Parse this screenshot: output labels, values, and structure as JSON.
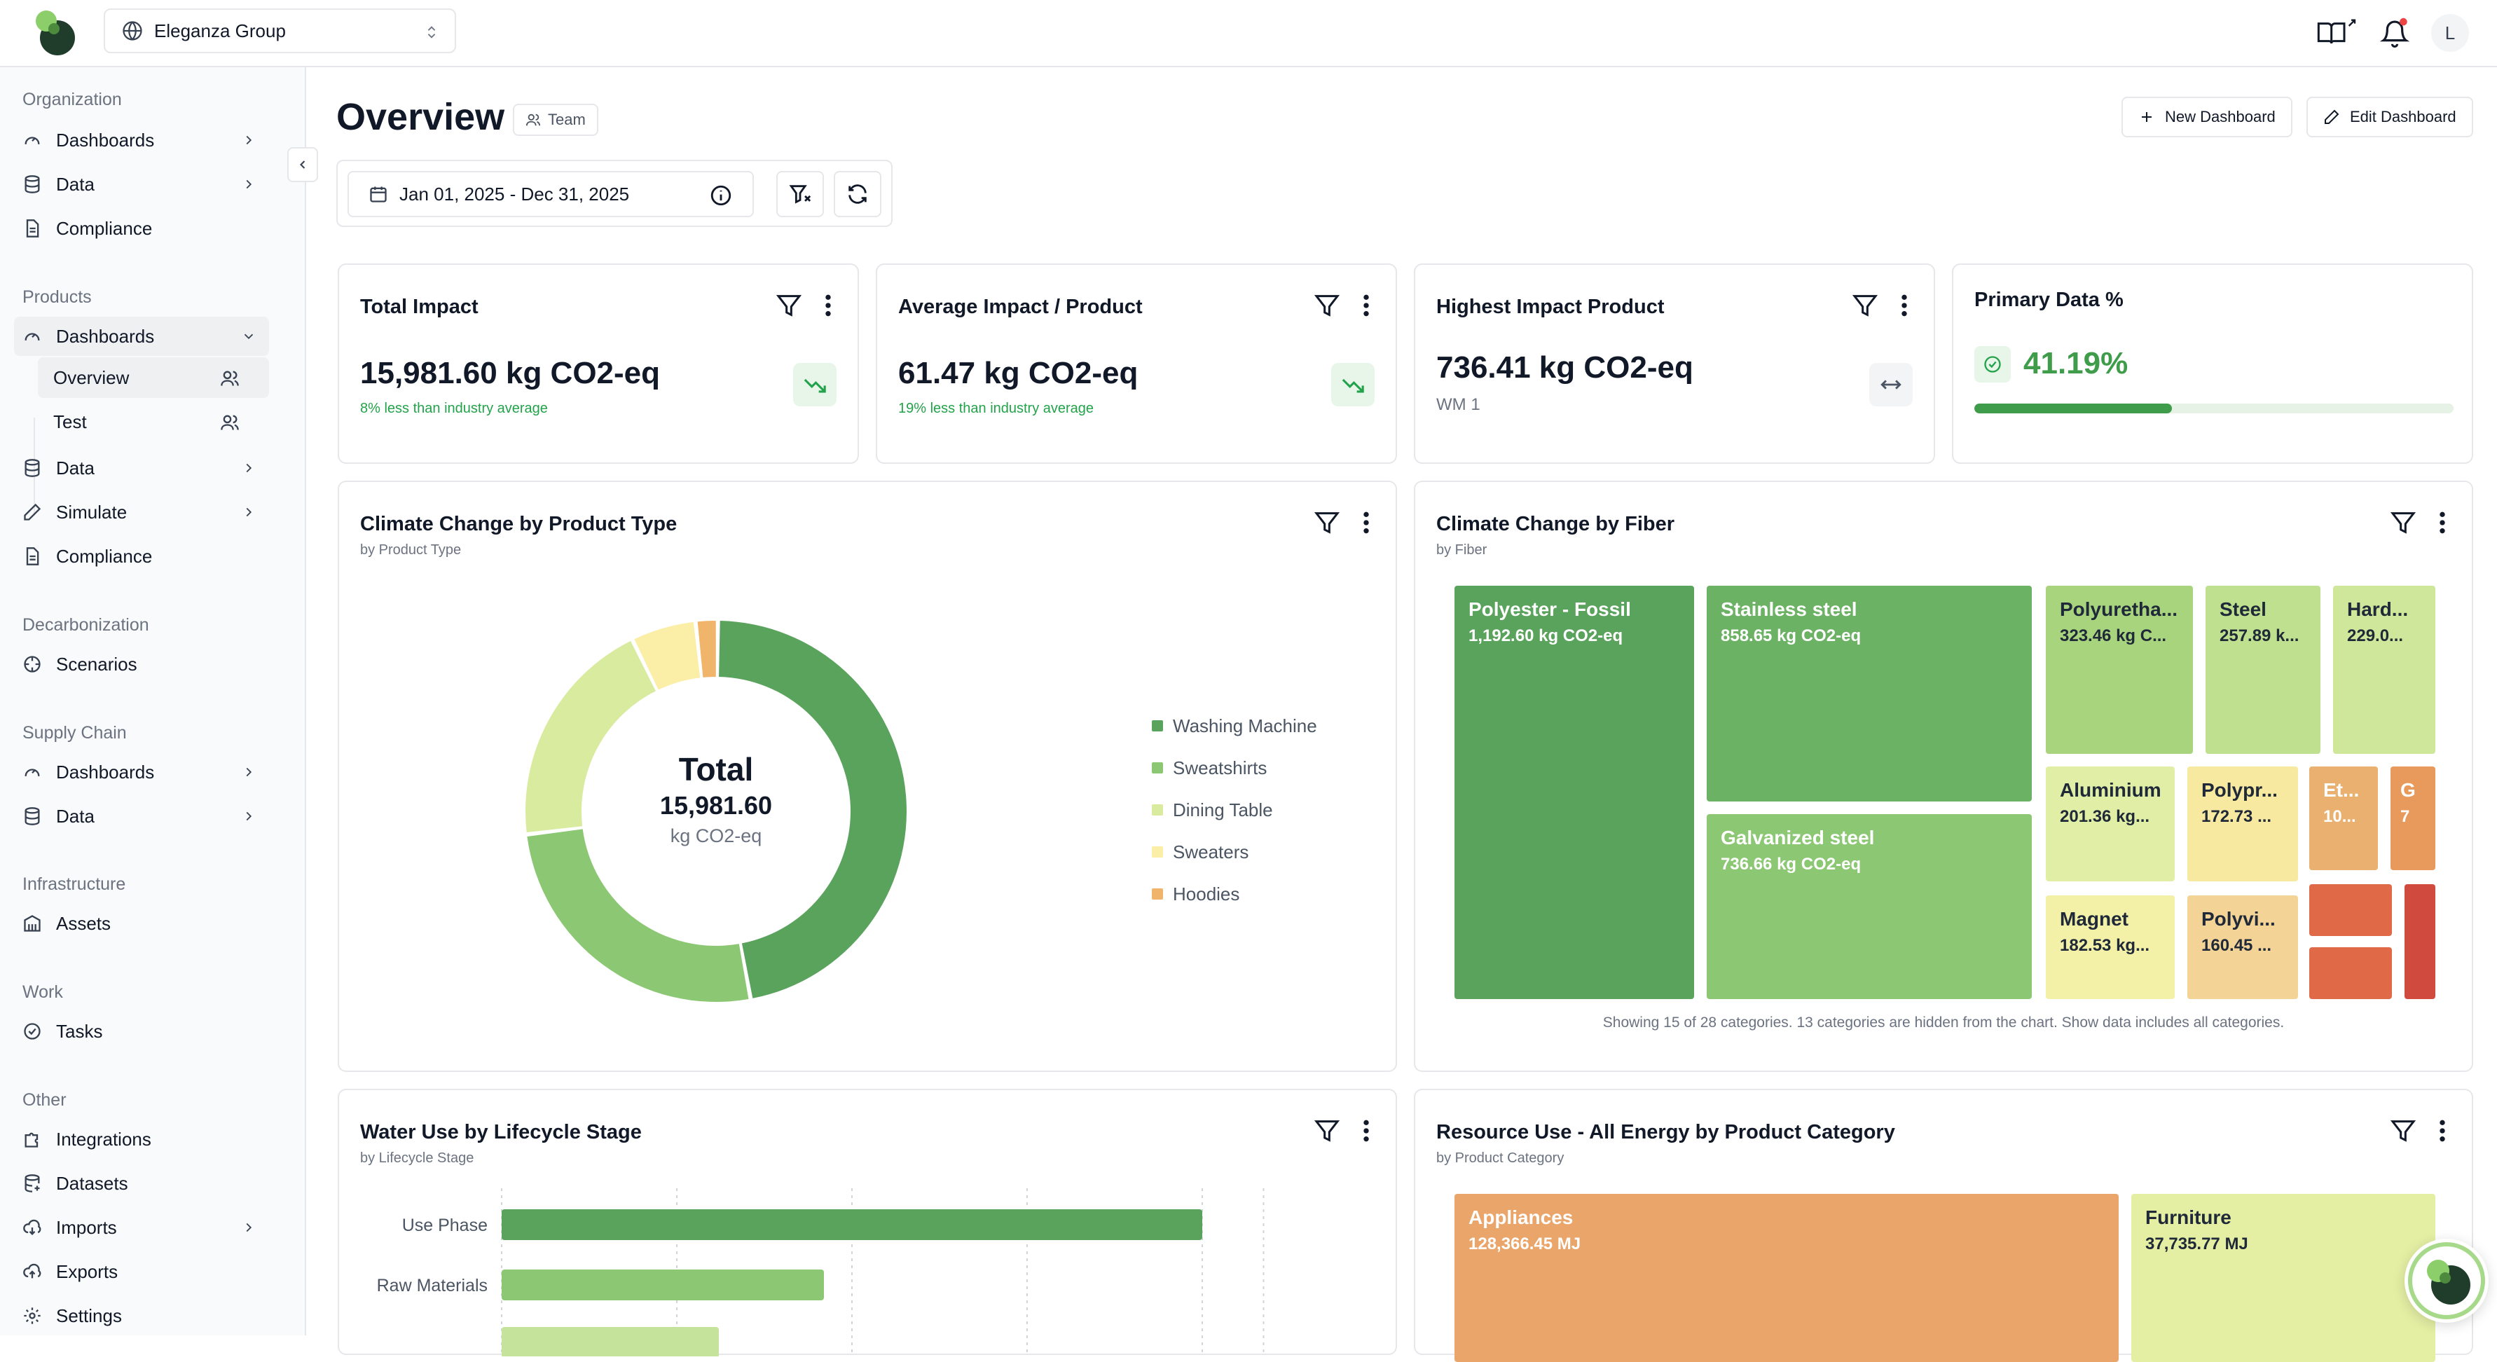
{
  "topbar": {
    "org_name": "Eleganza Group",
    "avatar_initial": "L"
  },
  "sidebar": {
    "sections": [
      {
        "title": "Organization"
      },
      {
        "title": "Products"
      },
      {
        "title": "Decarbonization"
      },
      {
        "title": "Supply Chain"
      },
      {
        "title": "Infrastructure"
      },
      {
        "title": "Work"
      },
      {
        "title": "Other"
      }
    ],
    "org_items": [
      "Dashboards",
      "Data",
      "Compliance"
    ],
    "products_items": [
      "Dashboards",
      "Overview",
      "Test",
      "Data",
      "Simulate",
      "Compliance"
    ],
    "decarb_items": [
      "Scenarios"
    ],
    "supply_items": [
      "Dashboards",
      "Data"
    ],
    "infra_items": [
      "Assets"
    ],
    "work_items": [
      "Tasks"
    ],
    "other_items": [
      "Integrations",
      "Datasets",
      "Imports",
      "Exports",
      "Settings"
    ]
  },
  "header": {
    "title": "Overview",
    "badge": "Team",
    "new_dashboard": "New Dashboard",
    "edit_dashboard": "Edit Dashboard",
    "date_range": "Jan 01, 2025 - Dec 31, 2025"
  },
  "kpis": [
    {
      "title": "Total Impact",
      "value": "15,981.60 kg CO2-eq",
      "note": "8% less than industry average"
    },
    {
      "title": "Average Impact / Product",
      "value": "61.47 kg CO2-eq",
      "note": "19% less than industry average"
    },
    {
      "title": "Highest Impact Product",
      "value": "736.41 kg CO2-eq",
      "note": "WM 1"
    },
    {
      "title": "Primary Data %",
      "value": "41.19%",
      "progress": 0.4119
    }
  ],
  "donut_card": {
    "title": "Climate Change by Product Type",
    "subtitle": "by Product Type",
    "center_label": "Total",
    "center_value": "15,981.60",
    "center_unit": "kg CO2-eq"
  },
  "fiber_card": {
    "title": "Climate Change by Fiber",
    "subtitle": "by Fiber",
    "note": "Showing 15 of 28 categories. 13 categories are hidden from the chart. Show data includes all categories.",
    "tiles": [
      {
        "name": "Polyester - Fossil",
        "value": "1,192.60 kg CO2-eq"
      },
      {
        "name": "Stainless steel",
        "value": "858.65 kg CO2-eq"
      },
      {
        "name": "Galvanized steel",
        "value": "736.66 kg CO2-eq"
      },
      {
        "name": "Polyuretha...",
        "value": "323.46 kg C..."
      },
      {
        "name": "Steel",
        "value": "257.89 k..."
      },
      {
        "name": "Hard...",
        "value": "229.0..."
      },
      {
        "name": "Aluminium",
        "value": "201.36 kg..."
      },
      {
        "name": "Polypr...",
        "value": "172.73 ..."
      },
      {
        "name": "Et...",
        "value": "10..."
      },
      {
        "name": "G",
        "value": "7"
      },
      {
        "name": "Magnet",
        "value": "182.53 kg..."
      },
      {
        "name": "Polyvi...",
        "value": "160.45 ..."
      }
    ]
  },
  "water_card": {
    "title": "Water Use by Lifecycle Stage",
    "subtitle": "by Lifecycle Stage"
  },
  "energy_card": {
    "title": "Resource Use - All Energy by Product Category",
    "subtitle": "by Product Category",
    "tiles": [
      {
        "name": "Appliances",
        "value": "128,366.45 MJ"
      },
      {
        "name": "Furniture",
        "value": "37,735.77 MJ"
      }
    ]
  },
  "colors": {
    "dark_green": "#5aa35c",
    "mid_green": "#8cc873",
    "light_green": "#c5e39a",
    "pale_yellow": "#eef2b0",
    "yellow": "#fbeea6",
    "orange": "#eab070",
    "red_orange": "#e06a47",
    "red": "#d04a3e"
  },
  "chart_data": [
    {
      "type": "pie",
      "title": "Climate Change by Product Type",
      "categories": [
        "Washing Machine",
        "Sweatshirts",
        "Dining Table",
        "Sweaters",
        "Hoodies"
      ],
      "values": [
        7500,
        4150,
        3150,
        880,
        300
      ],
      "colors": [
        "#5aa35c",
        "#8cc873",
        "#d8eb9f",
        "#fbeea6",
        "#f0b46a"
      ]
    },
    {
      "type": "bar",
      "title": "Water Use by Lifecycle Stage",
      "categories": [
        "Use Phase",
        "Raw Materials",
        ""
      ],
      "values": [
        100,
        46,
        31
      ],
      "colors": [
        "#5aa35c",
        "#8cc873",
        "#c5e39a"
      ]
    }
  ]
}
